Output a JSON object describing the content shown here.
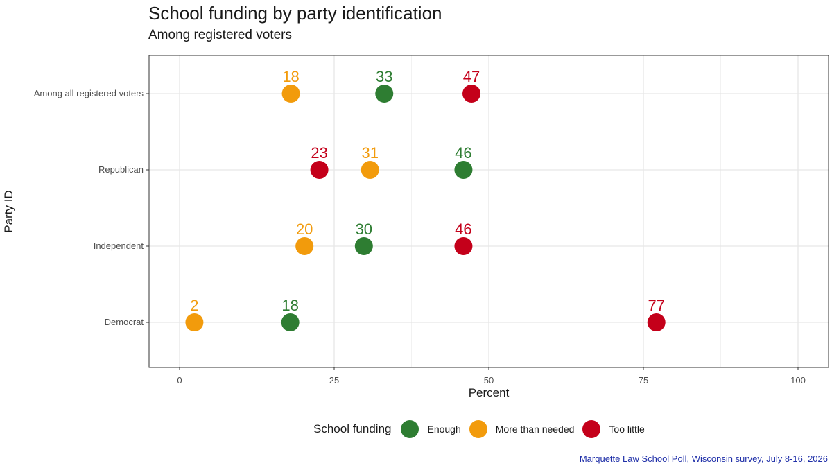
{
  "title": "School funding by party identification",
  "subtitle": "Among registered voters",
  "caption": "Marquette Law School Poll, Wisconsin survey, July 8-16, 2026",
  "legend": {
    "title": "School funding",
    "items": [
      {
        "label": "Enough",
        "color": "#2e7d32"
      },
      {
        "label": "More than needed",
        "color": "#f29b0c"
      },
      {
        "label": "Too little",
        "color": "#c4001a"
      }
    ]
  },
  "chart_data": {
    "type": "scatter",
    "title": "School funding by party identification",
    "subtitle": "Among registered voters",
    "xlabel": "Percent",
    "ylabel": "Party ID",
    "xlim": [
      0,
      100
    ],
    "xticks": [
      0,
      25,
      50,
      75,
      100
    ],
    "categories": [
      "Among all registered voters",
      "Republican",
      "Independent",
      "Democrat"
    ],
    "series": [
      {
        "name": "Enough",
        "color": "#2e7d32",
        "values": [
          33,
          46,
          30,
          18
        ]
      },
      {
        "name": "More than needed",
        "color": "#f29b0c",
        "values": [
          18,
          31,
          20,
          2
        ]
      },
      {
        "name": "Too little",
        "color": "#c4001a",
        "values": [
          47,
          23,
          46,
          77
        ]
      }
    ],
    "point_positions": [
      [
        33.1,
        45.9,
        29.8,
        17.9
      ],
      [
        18.0,
        30.8,
        20.2,
        2.4
      ],
      [
        47.2,
        22.6,
        45.9,
        77.1
      ]
    ],
    "grid": true,
    "legend_position": "bottom"
  }
}
